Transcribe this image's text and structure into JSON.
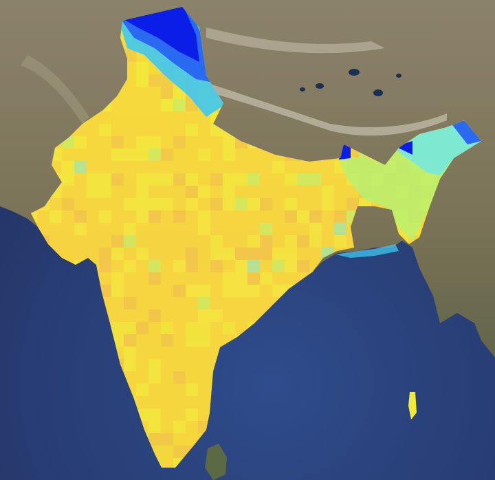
{
  "map": {
    "type": "satellite-basemap-with-choropleth-raster",
    "region": "India",
    "raster_palette": [
      "#0a1ee8",
      "#2a6af0",
      "#3fc8f0",
      "#7fe8d0",
      "#b8f070",
      "#f2ea38",
      "#f7d23a",
      "#f0b84a"
    ],
    "water_color": "#2b3f78",
    "land_color": "#6f6a4e",
    "labels": []
  }
}
